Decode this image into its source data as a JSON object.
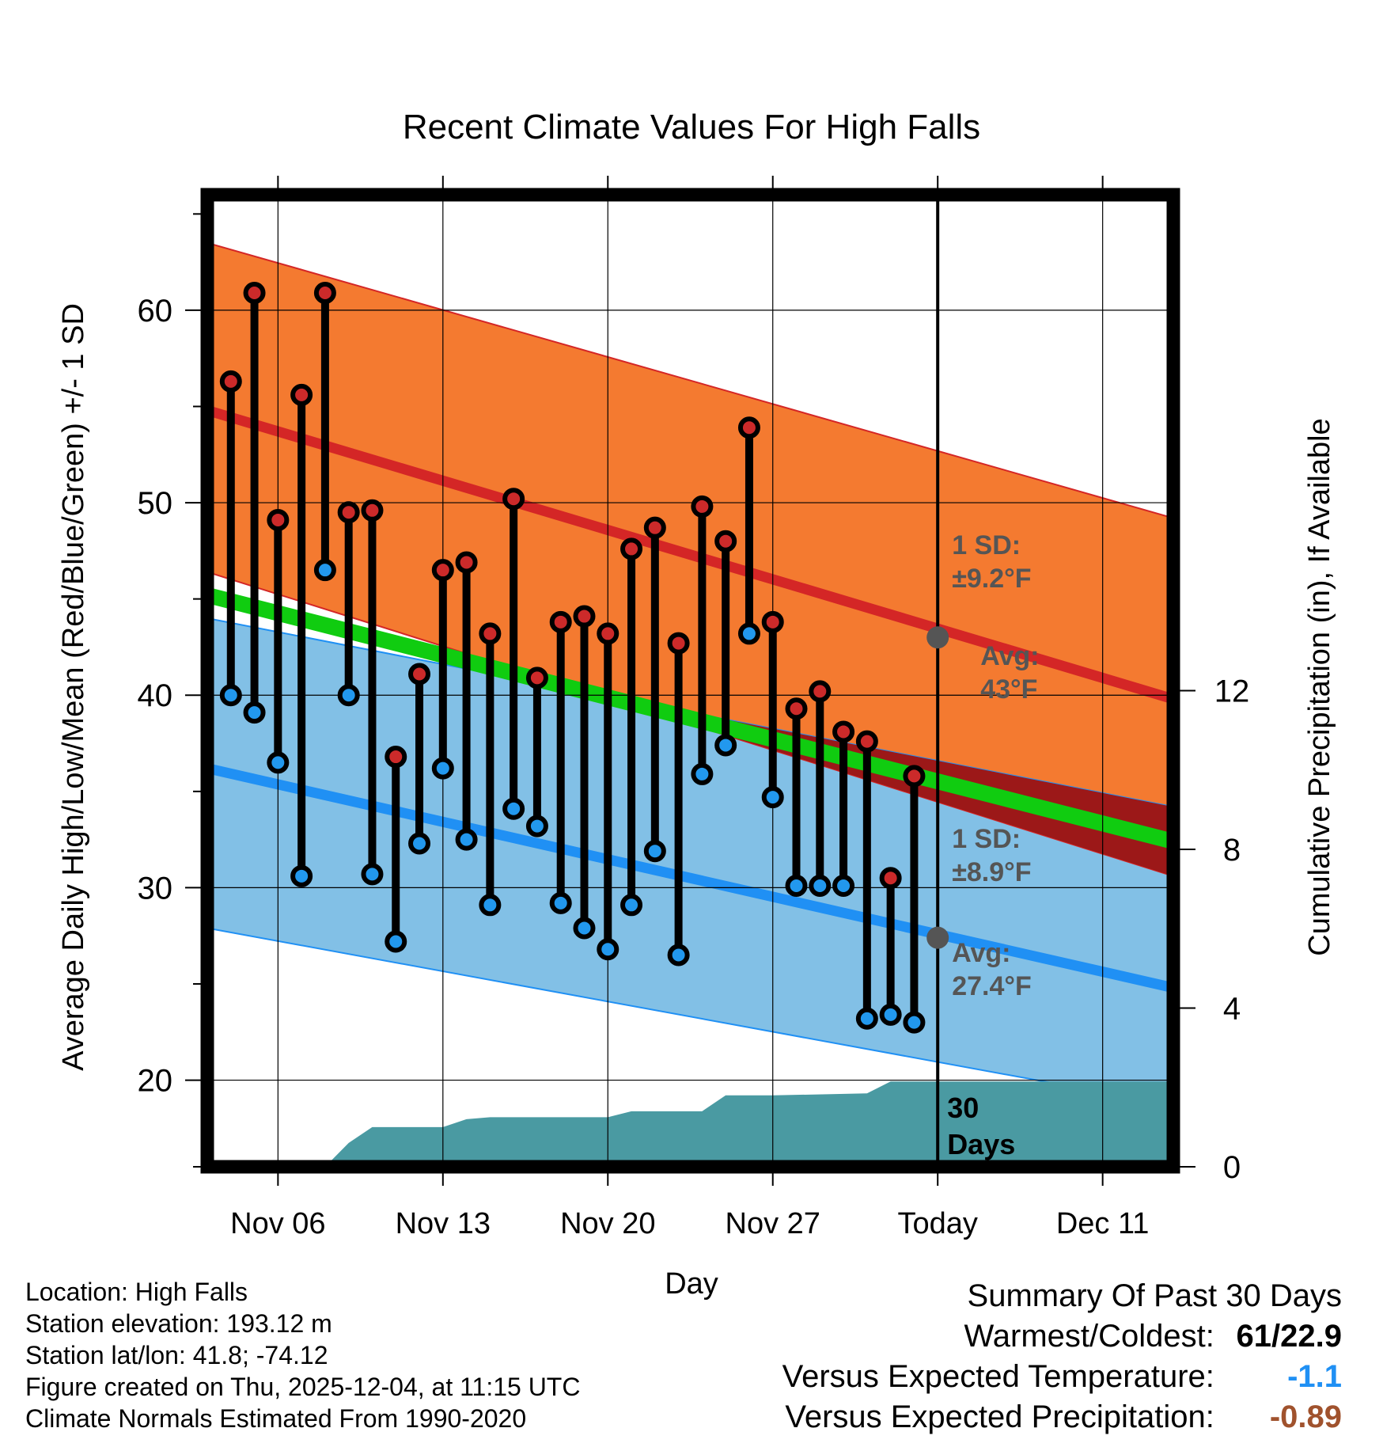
{
  "chart_data": {
    "type": "line",
    "title": "Recent Climate Values For High Falls",
    "xlabel": "Day",
    "ylabel": "Average Daily High/Low/Mean (Red/Blue/Green) +/- 1 SD",
    "y2label": "Cumulative Precipitation (in), If Available",
    "xlim": [
      0,
      41
    ],
    "ylim": [
      15.5,
      66
    ],
    "y2lim": [
      0,
      24.5
    ],
    "x_ticks": [
      {
        "x": 3,
        "label": "Nov 06"
      },
      {
        "x": 10,
        "label": "Nov 13"
      },
      {
        "x": 17,
        "label": "Nov 20"
      },
      {
        "x": 24,
        "label": "Nov 27"
      },
      {
        "x": 31,
        "label": "Today"
      },
      {
        "x": 38,
        "label": "Dec 11"
      }
    ],
    "y_ticks": [
      20,
      30,
      40,
      50,
      60
    ],
    "y2_ticks": [
      0,
      4,
      8,
      12
    ],
    "today_x": 31,
    "normal_high": {
      "x": [
        0,
        41
      ],
      "mean": [
        54.8,
        39.8
      ],
      "upper": [
        63.5,
        49.2
      ],
      "lower": [
        46.4,
        30.6
      ],
      "sd_label": "1 SD:",
      "sd_value": "±9.2°F",
      "avg_label": "Avg:",
      "avg_value": "43°F",
      "today_value": 43.0
    },
    "normal_low": {
      "x": [
        0,
        41
      ],
      "mean": [
        36.2,
        24.8
      ],
      "upper": [
        44.0,
        34.2
      ],
      "lower": [
        27.9,
        18.7
      ],
      "sd_label": "1 SD:",
      "sd_value": "±8.9°F",
      "avg_label": "Avg:",
      "avg_value": "27.4°F",
      "today_value": 27.4
    },
    "normal_mean": {
      "x": [
        0,
        41
      ],
      "mean": [
        45.2,
        32.4
      ]
    },
    "observed": {
      "x": [
        1,
        2,
        3,
        4,
        5,
        6,
        7,
        8,
        9,
        10,
        11,
        12,
        13,
        14,
        15,
        16,
        17,
        18,
        19,
        20,
        21,
        22,
        23,
        24,
        25,
        26,
        27,
        28,
        29,
        30
      ],
      "high": [
        56.3,
        60.9,
        49.1,
        55.6,
        60.9,
        49.5,
        49.6,
        36.8,
        41.1,
        46.5,
        46.9,
        43.2,
        50.2,
        40.9,
        43.8,
        44.1,
        43.2,
        47.6,
        48.7,
        42.7,
        49.8,
        48.0,
        53.9,
        43.8,
        39.3,
        40.2,
        38.1,
        37.6,
        30.5,
        35.8
      ],
      "low": [
        40.0,
        39.1,
        36.5,
        30.6,
        46.5,
        40.0,
        30.7,
        27.2,
        32.3,
        36.2,
        32.5,
        29.1,
        34.1,
        33.2,
        29.2,
        27.9,
        26.8,
        29.1,
        31.9,
        26.5,
        35.9,
        37.4,
        43.2,
        34.7,
        30.1,
        30.1,
        30.1,
        23.2,
        23.4,
        23.0
      ]
    },
    "precipitation": {
      "x": [
        5,
        6,
        7,
        10,
        11,
        12,
        17,
        18,
        19,
        21,
        22,
        23,
        24,
        28,
        29,
        30,
        41
      ],
      "cumulative": [
        0,
        0.6,
        1.0,
        1.0,
        1.2,
        1.25,
        1.25,
        1.4,
        1.4,
        1.4,
        1.8,
        1.8,
        1.8,
        1.85,
        2.15,
        2.15,
        2.15
      ]
    },
    "precip_label_line1": "30",
    "precip_label_line2": "Days",
    "colors": {
      "high_band": "#f47a30",
      "high_line": "#d42626",
      "low_band": "#82c0e6",
      "low_line": "#2090f4",
      "mean_line": "#10cc10",
      "overlap": "#9c1818",
      "precip": "#4a9aa2",
      "high_dot": "#cc2a2a",
      "low_dot": "#2298ee",
      "label_gray": "#555555"
    }
  },
  "info": {
    "location": "Location: High Falls",
    "elevation": "Station elevation: 193.12 m",
    "latlon": "Station lat/lon: 41.8; -74.12",
    "created": "Figure created on Thu, 2025-12-04, at 11:15 UTC",
    "normals": "Climate Normals Estimated From 1990-2020"
  },
  "summary": {
    "title": "Summary Of Past 30 Days",
    "warmest_label": "Warmest/Coldest:",
    "warmest_high": "61",
    "warmest_sep": "/",
    "warmest_low": "22.9",
    "temp_label": "Versus Expected Temperature:",
    "temp_value": "-1.1",
    "temp_color": "#2090f4",
    "precip_label": "Versus Expected Precipitation:",
    "precip_value": "-0.89",
    "precip_color": "#a0522d"
  }
}
